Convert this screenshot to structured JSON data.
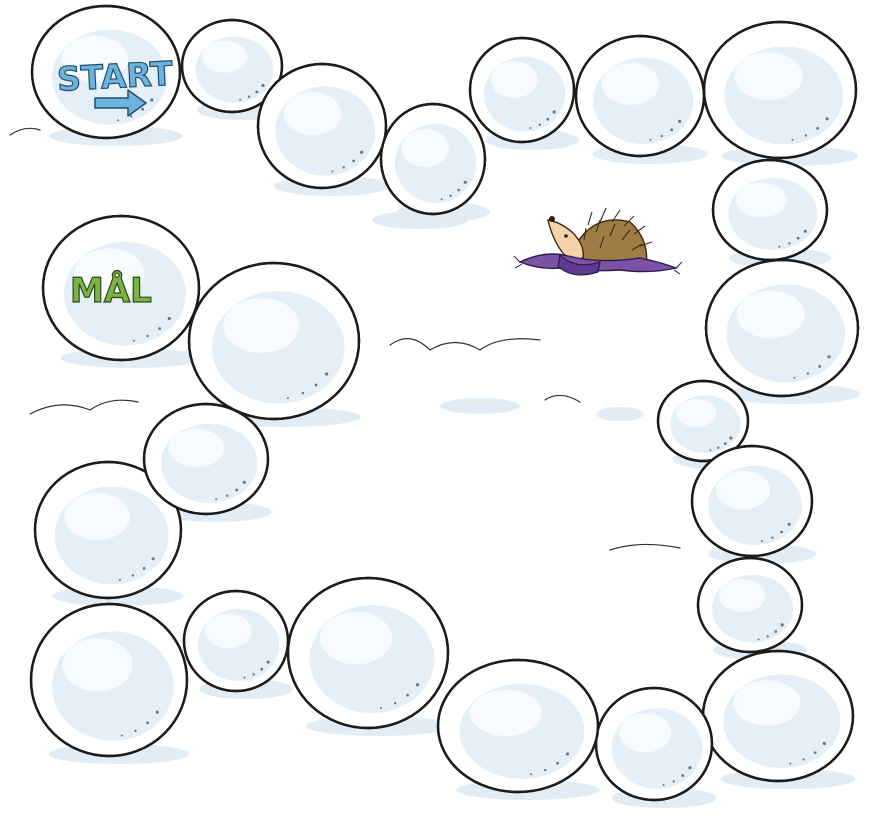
{
  "start": {
    "label": "START",
    "arrow": "arrow-right-icon",
    "color": "#6fb3dd"
  },
  "finish": {
    "label": "MÅL",
    "color": "#7cb342"
  },
  "token": {
    "name": "hedgehog-with-purple-scarf",
    "scarf_color": "#7a52a8",
    "body_color": "#8a6a3a"
  }
}
